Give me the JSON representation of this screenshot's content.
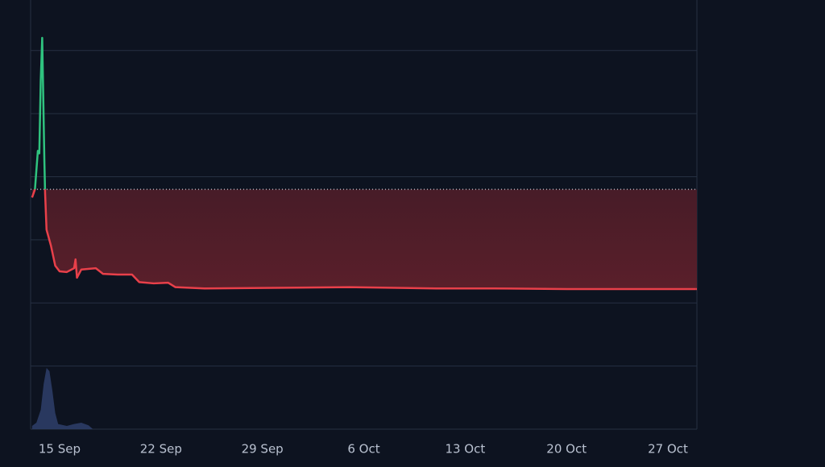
{
  "chart_data": {
    "type": "line",
    "x": [
      -1.9,
      -1.7,
      -1.5,
      -1.4,
      -1.3,
      -1.2,
      -1.05,
      -1.0,
      -0.9,
      -0.6,
      -0.3,
      0.0,
      0.5,
      1.0,
      1.1,
      1.2,
      1.5,
      2.5,
      3.0,
      4.0,
      5.0,
      5.5,
      6.5,
      7.5,
      8.0,
      10,
      20,
      26,
      30,
      35,
      43.9
    ],
    "values": [
      3.67,
      3.8,
      4.41,
      4.37,
      5.52,
      6.2,
      4.25,
      3.74,
      3.16,
      2.91,
      2.59,
      2.5,
      2.49,
      2.55,
      2.69,
      2.4,
      2.53,
      2.55,
      2.46,
      2.45,
      2.45,
      2.33,
      2.31,
      2.32,
      2.25,
      2.23,
      2.25,
      2.23,
      2.23,
      2.22,
      2.22
    ],
    "xlim": [
      -2,
      44
    ],
    "ylim": [
      0,
      6.8
    ],
    "xticks": [
      {
        "value": 0,
        "label": "15 Sep"
      },
      {
        "value": 7,
        "label": "22 Sep"
      },
      {
        "value": 14,
        "label": "29 Sep"
      },
      {
        "value": 21,
        "label": "6 Oct"
      },
      {
        "value": 28,
        "label": "13 Oct"
      },
      {
        "value": 35,
        "label": "20 Oct"
      },
      {
        "value": 42,
        "label": "27 Oct"
      }
    ],
    "yticks": [
      1,
      2,
      3,
      4,
      5,
      6
    ],
    "grid": true,
    "baseline": 3.8,
    "up_color": "#2fc37f",
    "down_color": "#e8404a",
    "volume": {
      "x": [
        -1.9,
        -1.6,
        -1.3,
        -1.1,
        -0.9,
        -0.7,
        -0.5,
        -0.3,
        -0.1,
        0.5,
        1.0,
        1.5,
        2.0,
        2.3
      ],
      "values": [
        5,
        10,
        30,
        70,
        95,
        90,
        60,
        25,
        8,
        5,
        8,
        10,
        6,
        0
      ],
      "ylim": [
        0,
        100
      ],
      "color": "#2c3d66"
    }
  }
}
